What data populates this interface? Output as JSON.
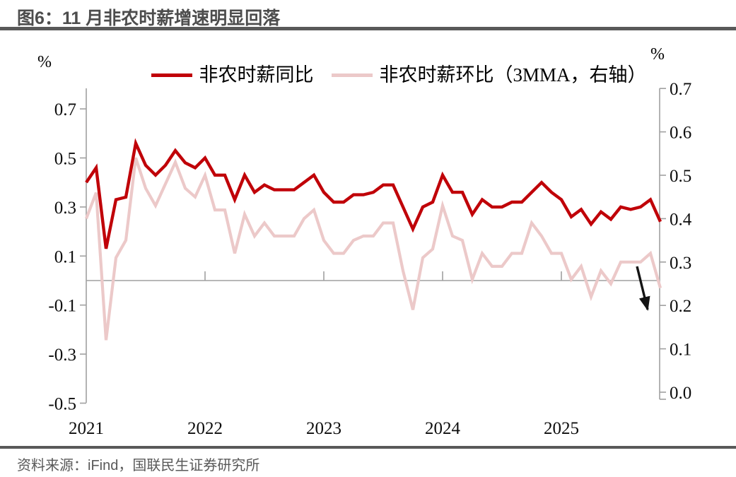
{
  "title": {
    "text": "图6：11 月非农时薪增速明显回落"
  },
  "source": {
    "text": "资料来源：iFind，国联民生证券研究所"
  },
  "colors": {
    "series_yoy": "#c00008",
    "series_mom3mma": "#ecc9c9",
    "axis_gray": "#a0a0a0",
    "rule_gray": "#595959",
    "arrow_black": "#141414"
  },
  "chart_data": {
    "type": "line",
    "title": "图6：11 月非农时薪增速明显回落",
    "x_tick_labels": [
      "2021",
      "2022",
      "2023",
      "2024",
      "2025"
    ],
    "left_axis": {
      "unit": "%",
      "ticks": [
        0.7,
        0.5,
        0.3,
        0.1,
        -0.1,
        -0.3,
        -0.5
      ],
      "range": [
        -0.5,
        0.7
      ]
    },
    "right_axis": {
      "unit": "%",
      "ticks": [
        0.7,
        0.6,
        0.5,
        0.4,
        0.3,
        0.2,
        0.1,
        0.0
      ],
      "range": [
        0.0,
        0.7
      ]
    },
    "grid": false,
    "legend_position": "top-center",
    "x": [
      "2021-01",
      "2021-02",
      "2021-03",
      "2021-04",
      "2021-05",
      "2021-06",
      "2021-07",
      "2021-08",
      "2021-09",
      "2021-10",
      "2021-11",
      "2021-12",
      "2022-01",
      "2022-02",
      "2022-03",
      "2022-04",
      "2022-05",
      "2022-06",
      "2022-07",
      "2022-08",
      "2022-09",
      "2022-10",
      "2022-11",
      "2022-12",
      "2023-01",
      "2023-02",
      "2023-03",
      "2023-04",
      "2023-05",
      "2023-06",
      "2023-07",
      "2023-08",
      "2023-09",
      "2023-10",
      "2023-11",
      "2023-12",
      "2024-01",
      "2024-02",
      "2024-03",
      "2024-04",
      "2024-05",
      "2024-06",
      "2024-07",
      "2024-08",
      "2024-09",
      "2024-10",
      "2024-11",
      "2024-12",
      "2025-01",
      "2025-02",
      "2025-03",
      "2025-04",
      "2025-05",
      "2025-06",
      "2025-07",
      "2025-08",
      "2025-09",
      "2025-10",
      "2025-11"
    ],
    "series": [
      {
        "name": "非农时薪同比",
        "axis": "left",
        "color": "#c00008",
        "values": [
          0.4,
          0.46,
          0.13,
          0.33,
          0.34,
          0.56,
          0.47,
          0.43,
          0.47,
          0.53,
          0.48,
          0.46,
          0.5,
          0.43,
          0.43,
          0.33,
          0.43,
          0.36,
          0.39,
          0.37,
          0.37,
          0.37,
          0.4,
          0.43,
          0.36,
          0.32,
          0.32,
          0.35,
          0.35,
          0.36,
          0.39,
          0.39,
          0.3,
          0.21,
          0.3,
          0.32,
          0.43,
          0.36,
          0.36,
          0.27,
          0.33,
          0.3,
          0.3,
          0.32,
          0.32,
          0.36,
          0.4,
          0.36,
          0.33,
          0.26,
          0.29,
          0.23,
          0.28,
          0.25,
          0.3,
          0.29,
          0.3,
          0.33,
          0.24
        ]
      },
      {
        "name": "非农时薪环比（3MMA，右轴）",
        "axis": "right",
        "color": "#ecc9c9",
        "values": [
          0.4,
          0.46,
          0.12,
          0.31,
          0.35,
          0.54,
          0.47,
          0.43,
          0.48,
          0.53,
          0.47,
          0.45,
          0.5,
          0.42,
          0.42,
          0.32,
          0.41,
          0.36,
          0.39,
          0.36,
          0.36,
          0.36,
          0.4,
          0.42,
          0.35,
          0.32,
          0.32,
          0.35,
          0.36,
          0.36,
          0.39,
          0.39,
          0.28,
          0.19,
          0.31,
          0.33,
          0.43,
          0.36,
          0.35,
          0.26,
          0.32,
          0.29,
          0.29,
          0.32,
          0.32,
          0.39,
          0.36,
          0.32,
          0.32,
          0.26,
          0.29,
          0.22,
          0.28,
          0.25,
          0.3,
          0.3,
          0.3,
          0.32,
          0.24
        ]
      }
    ],
    "annotation": {
      "type": "arrow",
      "direction": "down-right",
      "near_x": "2025-11",
      "meaning": "11月回落"
    }
  }
}
